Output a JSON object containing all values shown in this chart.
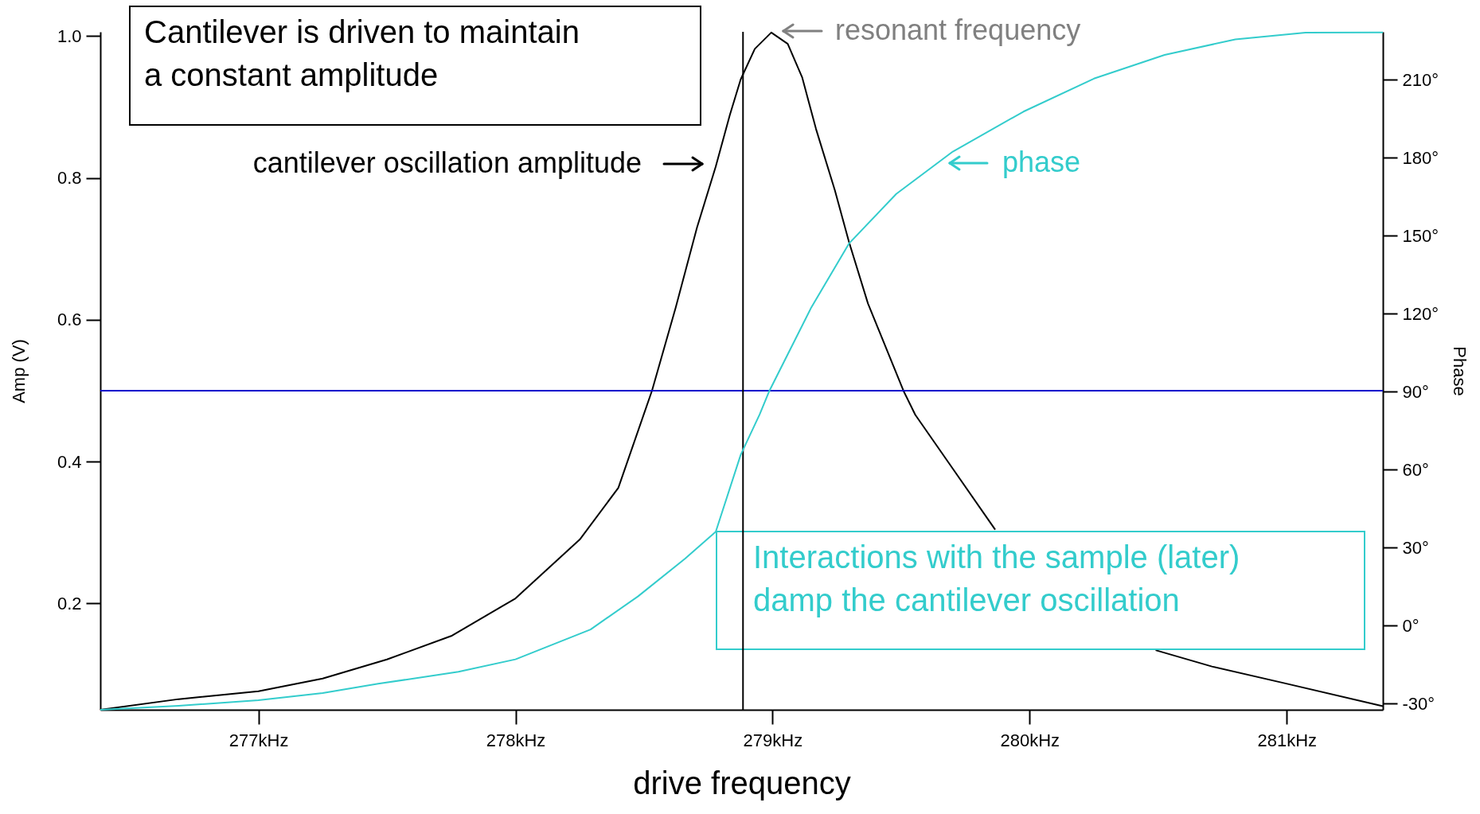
{
  "chart_data": {
    "type": "line",
    "xlabel": "drive frequency",
    "ylabel": "Amp (V)",
    "y2label": "Phase",
    "xlim": [
      276.385,
      281.374
    ],
    "ylim": [
      0.05,
      1.006
    ],
    "y2lim": [
      -32.4,
      228.5
    ],
    "xticks": [
      {
        "value": 277,
        "label": "277kHz"
      },
      {
        "value": 278,
        "label": "278kHz"
      },
      {
        "value": 279,
        "label": "279kHz"
      },
      {
        "value": 280,
        "label": "280kHz"
      },
      {
        "value": 281,
        "label": "281kHz"
      }
    ],
    "yticks": [
      0.2,
      0.4,
      0.6,
      0.8,
      {
        "value": 1,
        "label": "1.0"
      }
    ],
    "y2ticks": [
      {
        "value": -30,
        "label": "-30°"
      },
      {
        "value": 0,
        "label": "0°"
      },
      {
        "value": 30,
        "label": "30°"
      },
      {
        "value": 60,
        "label": "60°"
      },
      {
        "value": 90,
        "label": "90°"
      },
      {
        "value": 120,
        "label": "120°"
      },
      {
        "value": 150,
        "label": "150°"
      },
      {
        "value": 180,
        "label": "180°"
      },
      {
        "value": 210,
        "label": "210°"
      }
    ],
    "series": [
      {
        "color": "#000000",
        "x": [
          276.385,
          276.69,
          277.0,
          277.25,
          277.5,
          277.75,
          278.0,
          278.25,
          278.4,
          278.531,
          278.623,
          278.706,
          278.779,
          278.834,
          278.876,
          278.931,
          278.995,
          279.059,
          279.115,
          279.169,
          279.242,
          279.297,
          279.371,
          279.509,
          279.555,
          279.701,
          279.866,
          280.1,
          280.3,
          280.49,
          280.709,
          280.985,
          281.374
        ],
        "values": [
          0.05,
          0.065,
          0.076,
          0.094,
          0.121,
          0.154,
          0.207,
          0.29,
          0.363,
          0.5,
          0.617,
          0.73,
          0.816,
          0.889,
          0.939,
          0.982,
          1.005,
          0.989,
          0.942,
          0.869,
          0.783,
          0.71,
          0.623,
          0.5,
          0.466,
          0.39,
          0.304,
          null,
          null,
          0.134,
          0.111,
          0.088,
          0.055
        ]
      },
      {
        "color": "#33cccc",
        "axis": "y2",
        "x": [
          276.385,
          276.69,
          277.0,
          277.25,
          277.466,
          277.778,
          278.0,
          278.292,
          278.476,
          278.659,
          278.779,
          278.876,
          278.95,
          278.986,
          279.151,
          279.297,
          279.481,
          279.701,
          279.976,
          280.25,
          280.525,
          280.8,
          281.073,
          281.374
        ],
        "values": [
          -32.4,
          -30.9,
          -28.7,
          -26.0,
          -22.4,
          -17.8,
          -13.0,
          -1.5,
          11.2,
          25.7,
          36.1,
          65.7,
          81.3,
          90,
          122.5,
          147.0,
          166.1,
          182.4,
          197.8,
          210.5,
          219.6,
          225.6,
          228.2,
          228.3
        ]
      }
    ],
    "ref_lines": [
      {
        "axis": "y",
        "value": 0.5,
        "color": "#0000cc"
      },
      {
        "axis": "x",
        "value": 278.885,
        "color": "#000000"
      }
    ],
    "annotations": [
      "Cantilever is driven to maintain\na constant amplitude",
      "cantilever oscillation amplitude",
      "resonant frequency",
      "phase",
      "Interactions with the sample (later)\ndamp the cantilever oscillation"
    ],
    "grid": false,
    "marker": "none",
    "line_style": "solid"
  }
}
